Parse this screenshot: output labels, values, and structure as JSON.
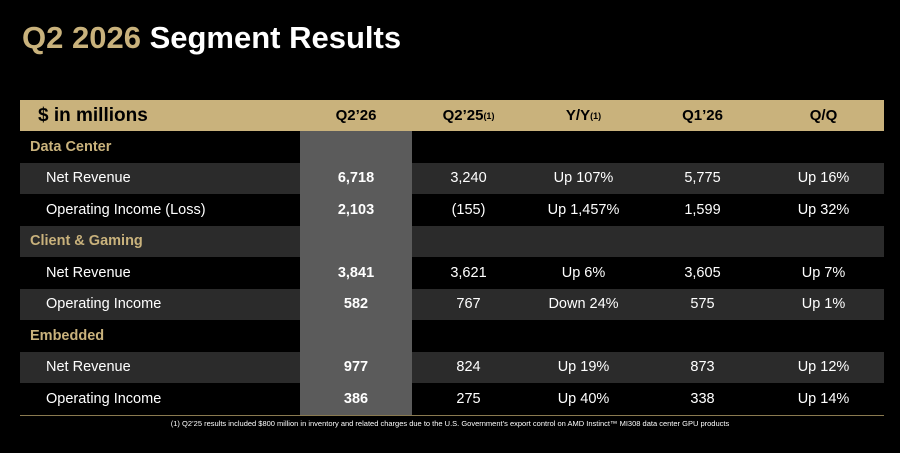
{
  "header": {
    "title_highlight": "Q2 2026",
    "title": "Segment Results"
  },
  "table": {
    "corner": "$ in millions",
    "columns": [
      {
        "label": "Q2’26"
      },
      {
        "label": "Q2’25",
        "note": "(1)"
      },
      {
        "label": "Y/Y",
        "note": "(1)"
      },
      {
        "label": "Q1’26"
      },
      {
        "label": "Q/Q"
      }
    ],
    "sections": [
      {
        "name": "Data Center",
        "rows": [
          {
            "label": "Net Revenue",
            "cells": [
              "6,718",
              "3,240",
              "Up 107%",
              "5,775",
              "Up 16%"
            ]
          },
          {
            "label": "Operating Income (Loss)",
            "cells": [
              "2,103",
              "(155)",
              "Up 1,457%",
              "1,599",
              "Up 32%"
            ]
          }
        ]
      },
      {
        "name": "Client & Gaming",
        "rows": [
          {
            "label": "Net Revenue",
            "cells": [
              "3,841",
              "3,621",
              "Up 6%",
              "3,605",
              "Up 7%"
            ]
          },
          {
            "label": "Operating Income",
            "cells": [
              "582",
              "767",
              "Down 24%",
              "575",
              "Up 1%"
            ]
          }
        ]
      },
      {
        "name": "Embedded",
        "rows": [
          {
            "label": "Net Revenue",
            "cells": [
              "977",
              "824",
              "Up 19%",
              "873",
              "Up 12%"
            ]
          },
          {
            "label": "Operating Income",
            "cells": [
              "386",
              "275",
              "Up 40%",
              "338",
              "Up 14%"
            ]
          }
        ]
      }
    ]
  },
  "footnote": "(1) Q2’25 results included $800 million in inventory and related charges due to the U.S. Government’s export control on AMD Instinct™ MI308 data center GPU products"
}
